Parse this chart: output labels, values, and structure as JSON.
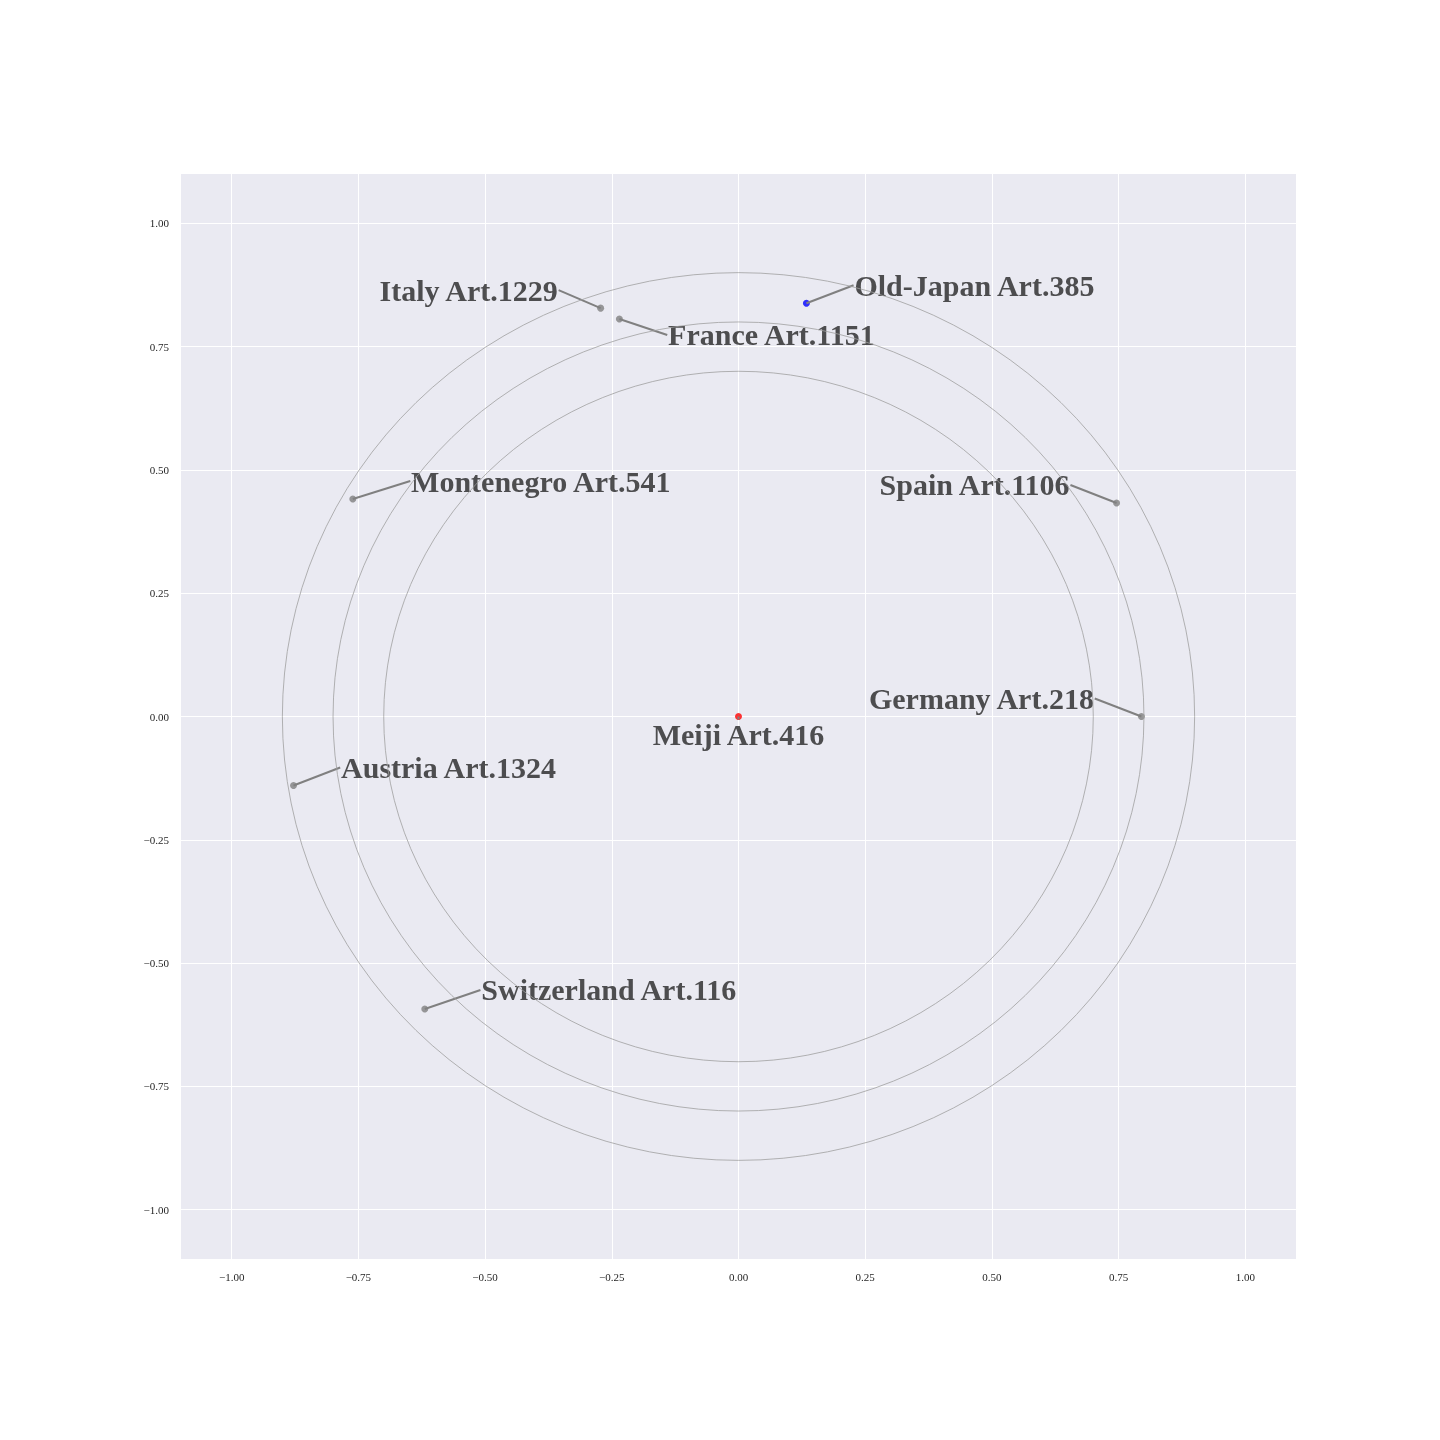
{
  "chart_data": {
    "type": "scatter",
    "xlim": [
      -1.1,
      1.1
    ],
    "ylim": [
      -1.1,
      1.1
    ],
    "xticks": [
      {
        "value": -1,
        "label": "−1.00"
      },
      {
        "value": -0.75,
        "label": "−0.75"
      },
      {
        "value": -0.5,
        "label": "−0.50"
      },
      {
        "value": -0.25,
        "label": "−0.25"
      },
      {
        "value": 0,
        "label": "0.00"
      },
      {
        "value": 0.25,
        "label": "0.25"
      },
      {
        "value": 0.5,
        "label": "0.50"
      },
      {
        "value": 0.75,
        "label": "0.75"
      },
      {
        "value": 1,
        "label": "1.00"
      }
    ],
    "yticks": [
      {
        "value": -1,
        "label": "−1.00"
      },
      {
        "value": -0.75,
        "label": "−0.75"
      },
      {
        "value": -0.5,
        "label": "−0.50"
      },
      {
        "value": -0.25,
        "label": "−0.25"
      },
      {
        "value": 0,
        "label": "0.00"
      },
      {
        "value": 0.25,
        "label": "0.25"
      },
      {
        "value": 0.5,
        "label": "0.50"
      },
      {
        "value": 0.75,
        "label": "0.75"
      },
      {
        "value": 1,
        "label": "1.00"
      }
    ],
    "grid": true,
    "marker": "circle",
    "series": [
      {
        "x": [
          0.134,
          -0.272,
          -0.235,
          -0.761,
          0.746,
          0.795,
          0,
          -0.878,
          -0.619
        ],
        "values": [
          0.838,
          0.828,
          0.806,
          0.441,
          0.433,
          0,
          0,
          -0.14,
          -0.593
        ],
        "colors": [
          "#0000ff",
          "#808080",
          "#808080",
          "#808080",
          "#808080",
          "#808080",
          "#ff0000",
          "#808080",
          "#808080"
        ]
      }
    ],
    "annotations": [
      {
        "text": "Old-Japan Art.385",
        "x": 0.134,
        "y": 0.838
      },
      {
        "text": "Italy Art.1229",
        "x": -0.272,
        "y": 0.828
      },
      {
        "text": "France Art.1151",
        "x": -0.235,
        "y": 0.806
      },
      {
        "text": "Montenegro Art.541",
        "x": -0.761,
        "y": 0.441
      },
      {
        "text": "Spain Art.1106",
        "x": 0.746,
        "y": 0.433
      },
      {
        "text": "Germany Art.218",
        "x": 0.795,
        "y": 0
      },
      {
        "text": "Meiji Art.416",
        "x": 0,
        "y": 0
      },
      {
        "text": "Austria Art.1324",
        "x": -0.878,
        "y": -0.14
      },
      {
        "text": "Switzerland Art.116",
        "x": -0.619,
        "y": -0.593
      }
    ]
  }
}
